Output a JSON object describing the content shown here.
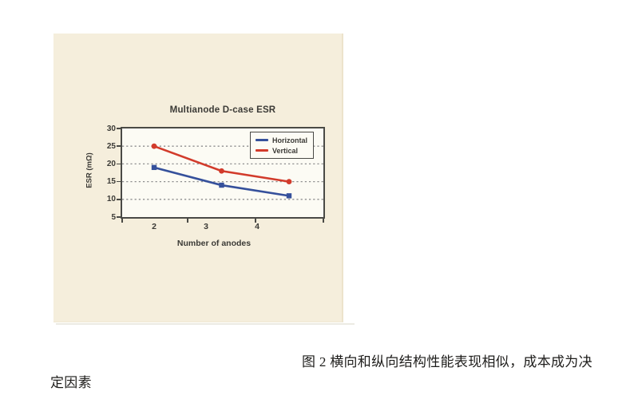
{
  "figure_panel": {
    "background": "#f5eedc"
  },
  "chart_data": {
    "type": "line",
    "title": "Multianode D-case ESR",
    "xlabel": "Number of anodes",
    "ylabel": "ESR (mΩ)",
    "x": [
      2,
      3,
      4
    ],
    "xtick_labels": [
      "2",
      "3",
      "4"
    ],
    "series": [
      {
        "name": "Horizontal",
        "color": "#35509b",
        "marker": "square",
        "values": [
          19,
          14,
          11
        ]
      },
      {
        "name": "Vertical",
        "color": "#d23b2b",
        "marker": "circle",
        "values": [
          25,
          18,
          15
        ]
      }
    ],
    "ylim": [
      5,
      30
    ],
    "yticks": [
      30,
      25,
      20,
      15,
      10,
      5
    ],
    "grid": "horizontal dashed",
    "legend_position": "top-right",
    "plot_bg": "#fcfbf4",
    "axis_color": "#4a4a46",
    "grid_color": "#8f8f8f",
    "text_color": "#3b3a36"
  },
  "caption": {
    "line1": "图 2 横向和纵向结构性能表现相似，成本成为决",
    "line2": "定因素"
  }
}
